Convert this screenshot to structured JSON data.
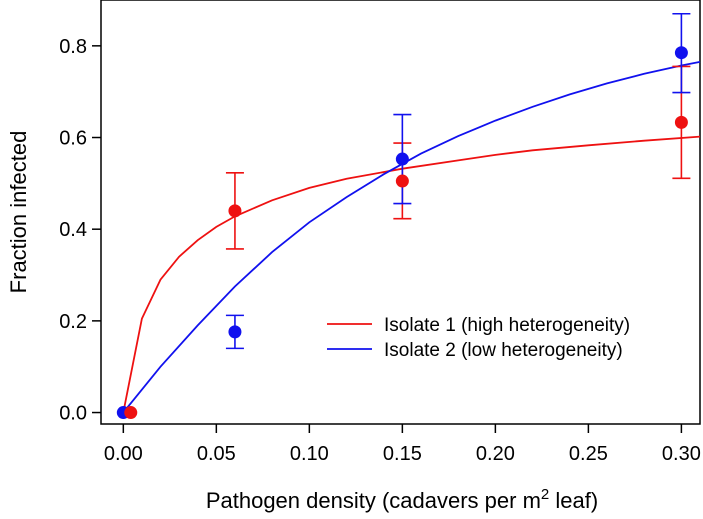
{
  "chart_data": {
    "type": "scatter",
    "xlabel_main": "Pathogen density (cadavers per m",
    "xlabel_sup": "2",
    "xlabel_tail": " leaf)",
    "ylabel": "Fraction infected",
    "xlim": [
      -0.012,
      0.31
    ],
    "ylim": [
      -0.025,
      0.9
    ],
    "x_ticks": [
      0.0,
      0.05,
      0.1,
      0.15,
      0.2,
      0.25,
      0.3
    ],
    "x_tick_labels": [
      "0.00",
      "0.05",
      "0.10",
      "0.15",
      "0.20",
      "0.25",
      "0.30"
    ],
    "y_ticks": [
      0.0,
      0.2,
      0.4,
      0.6,
      0.8
    ],
    "y_tick_labels": [
      "0.0",
      "0.2",
      "0.4",
      "0.6",
      "0.8"
    ],
    "grid": false,
    "legend_position": "right",
    "series": [
      {
        "name": "Isolate 1 (high heterogeneity)",
        "color": "#ee1111",
        "points": [
          {
            "x": 0.004,
            "y": 0.0
          },
          {
            "x": 0.06,
            "y": 0.44,
            "lo": 0.357,
            "hi": 0.523
          },
          {
            "x": 0.15,
            "y": 0.505,
            "lo": 0.423,
            "hi": 0.588
          },
          {
            "x": 0.3,
            "y": 0.633,
            "lo": 0.511,
            "hi": 0.755
          }
        ],
        "curve": {
          "x": [
            0.0,
            0.01,
            0.02,
            0.03,
            0.04,
            0.05,
            0.06,
            0.08,
            0.1,
            0.12,
            0.15,
            0.18,
            0.2,
            0.22,
            0.25,
            0.28,
            0.31
          ],
          "y": [
            0.0,
            0.205,
            0.29,
            0.34,
            0.376,
            0.405,
            0.428,
            0.463,
            0.49,
            0.51,
            0.532,
            0.55,
            0.562,
            0.572,
            0.583,
            0.593,
            0.602
          ]
        }
      },
      {
        "name": "Isolate 2 (low heterogeneity)",
        "color": "#1111ee",
        "points": [
          {
            "x": 0.0,
            "y": 0.0
          },
          {
            "x": 0.06,
            "y": 0.176,
            "lo": 0.14,
            "hi": 0.212
          },
          {
            "x": 0.15,
            "y": 0.553,
            "lo": 0.456,
            "hi": 0.65
          },
          {
            "x": 0.3,
            "y": 0.785,
            "lo": 0.698,
            "hi": 0.87
          }
        ],
        "curve": {
          "x": [
            0.0,
            0.02,
            0.04,
            0.06,
            0.08,
            0.1,
            0.12,
            0.14,
            0.16,
            0.18,
            0.2,
            0.22,
            0.24,
            0.26,
            0.28,
            0.3,
            0.31
          ],
          "y": [
            0.0,
            0.1,
            0.19,
            0.275,
            0.35,
            0.415,
            0.47,
            0.52,
            0.565,
            0.603,
            0.637,
            0.667,
            0.694,
            0.718,
            0.739,
            0.757,
            0.765
          ]
        }
      }
    ]
  }
}
